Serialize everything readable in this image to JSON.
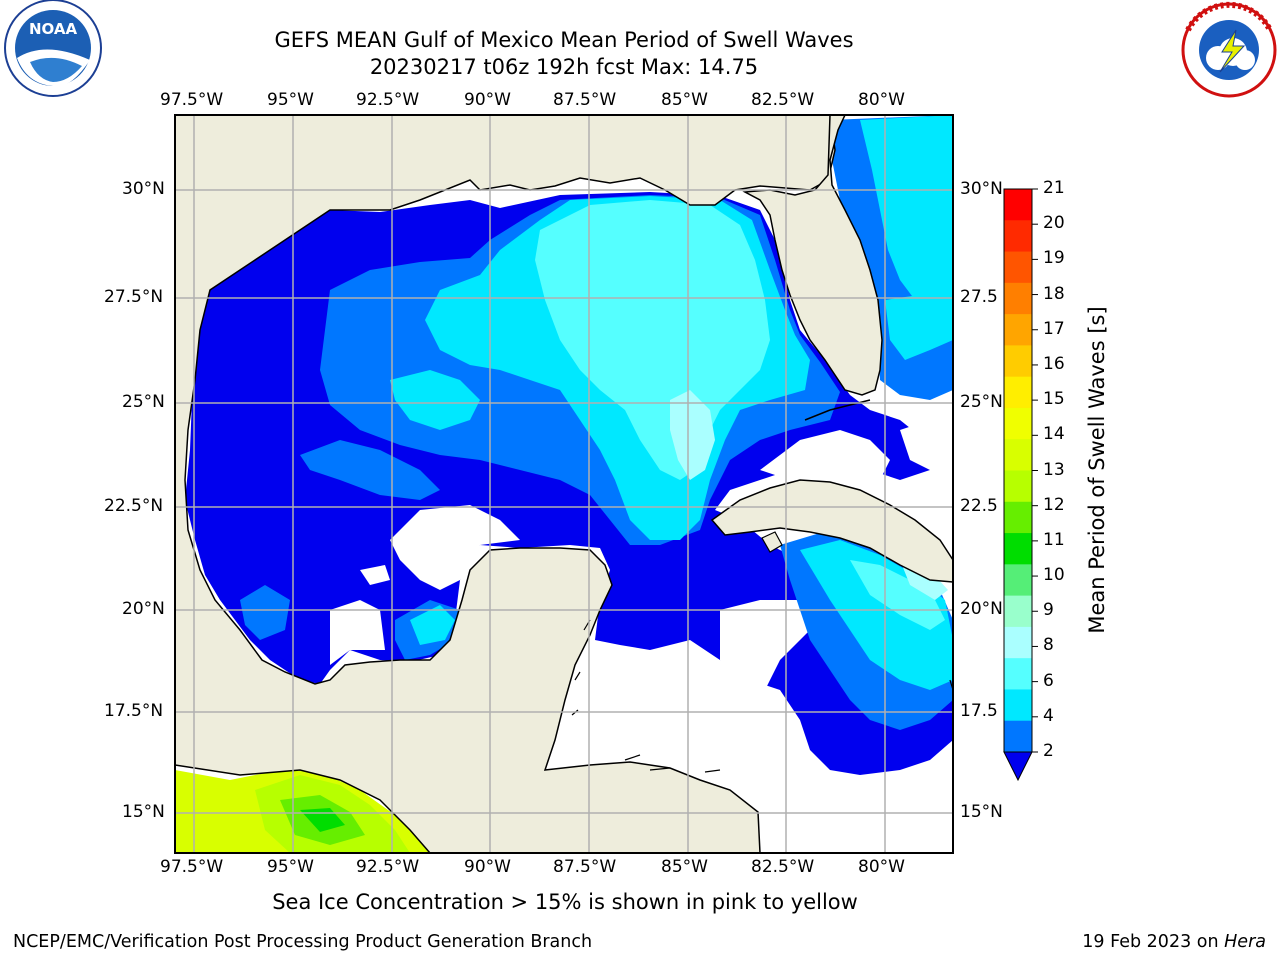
{
  "title": {
    "line1": "GEFS MEAN Gulf of Mexico Mean Period of Swell Waves",
    "line2": "20230217 t06z 192h fcst   Max: 14.75"
  },
  "logos": {
    "noaa": {
      "name": "noaa-logo",
      "text": "NOAA"
    },
    "nws": {
      "name": "nws-logo",
      "text": "NATIONAL WEATHER SERVICE"
    }
  },
  "map": {
    "lon_labels_top": [
      "97.5°W",
      "95°W",
      "92.5°W",
      "90°W",
      "87.5°W",
      "85°W",
      "82.5°W",
      "80°W"
    ],
    "lon_labels_bottom": [
      "97.5°W",
      "95°W",
      "92.5°W",
      "90°W",
      "87.5°W",
      "85°W",
      "82.5°W",
      "80°W"
    ],
    "lat_labels_left": [
      "30°N",
      "27.5°N",
      "25°N",
      "22.5°N",
      "20°N",
      "17.5°N",
      "15°N"
    ],
    "lat_labels_right": [
      "30°N",
      "27.5",
      "25°N",
      "22.5",
      "20°N",
      "17.5",
      "15°N"
    ],
    "colors": {
      "land": "#eeeddc",
      "ocean_nodata": "#ffffff",
      "grid": "#b0b0b0"
    }
  },
  "colorbar": {
    "title": "Mean Period of Swell Waves [s]",
    "ticks": [
      "21",
      "20",
      "19",
      "18",
      "17",
      "16",
      "15",
      "14",
      "13",
      "12",
      "11",
      "10",
      "9",
      "8",
      "6",
      "4",
      "2"
    ],
    "colors": [
      "#ff0000",
      "#ff2a00",
      "#ff5500",
      "#ff7f00",
      "#ffa500",
      "#ffcc00",
      "#ffee00",
      "#f0ff00",
      "#d8ff00",
      "#b7ff00",
      "#66ee00",
      "#00dd00",
      "#55ee77",
      "#99ffcc",
      "#aaffff",
      "#55ffff",
      "#00e8ff",
      "#0077ff",
      "#0000ee"
    ]
  },
  "sea_ice_note": "Sea Ice Concentration > 15% is shown in pink to yellow",
  "footer": {
    "left": "NCEP/EMC/Verification Post Processing Product Generation Branch",
    "date": "19 Feb 2023 on ",
    "host": "Hera"
  }
}
